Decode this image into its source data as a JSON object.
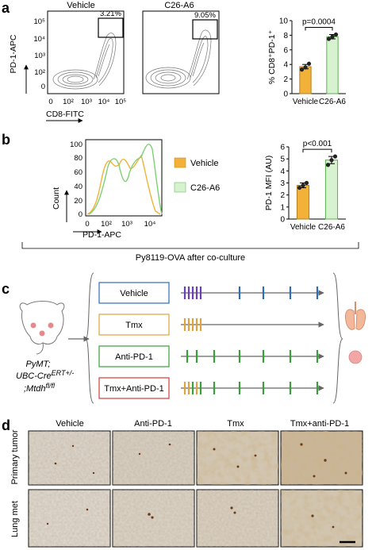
{
  "panel_a": {
    "label": "a",
    "flow_titles": [
      "Vehicle",
      "C26-A6"
    ],
    "gate_percents": [
      "3.21%",
      "9.05%"
    ],
    "y_axis_label": "PD-1-APC",
    "x_axis_label": "CD8-FITC",
    "y_ticks": [
      "10⁵",
      "10⁴",
      "10³",
      "10²",
      "0"
    ],
    "x_ticks": [
      "0",
      "10²",
      "10³",
      "10⁴",
      "10⁵"
    ],
    "bar_ylabel": "% CD8⁺PD-1⁺",
    "bar_pvalue": "p=0.0004",
    "bar_categories": [
      "Vehicle",
      "C26-A6"
    ],
    "bar_ticks": [
      "0",
      "2",
      "4",
      "6",
      "8",
      "10"
    ]
  },
  "panel_b": {
    "label": "b",
    "hist_ylabel": "Count",
    "hist_xlabel": "PD-1-APC",
    "hist_y_ticks": [
      "100",
      "80",
      "60",
      "40",
      "20",
      "0"
    ],
    "hist_x_ticks": [
      "0",
      "10²",
      "10³",
      "10⁴"
    ],
    "legend": [
      "Vehicle",
      "C26-A6"
    ],
    "bar_ylabel": "PD-1 MFI (AU)",
    "bar_pvalue": "p<0.001",
    "bar_categories": [
      "Vehicle",
      "C26-A6"
    ],
    "bar_ticks": [
      "0",
      "1",
      "2",
      "3",
      "4",
      "5",
      "6"
    ],
    "footer": "Py8119-OVA after co-culture"
  },
  "panel_c": {
    "label": "c",
    "mouse_genotype": [
      "PyMT;",
      "UBC-Cre",
      "ERT+/-",
      ";Mtdh",
      "fl/fl"
    ],
    "groups": [
      "Vehicle",
      "Tmx",
      "Anti-PD-1",
      "Tmx+Anti-PD-1"
    ]
  },
  "panel_d": {
    "label": "d",
    "col_labels": [
      "Vehicle",
      "Anti-PD-1",
      "Tmx",
      "Tmx+anti-PD-1"
    ],
    "row_labels": [
      "Primary tumor",
      "Lung met"
    ]
  },
  "colors": {
    "vehicle": "#f2b23a",
    "c26a6": "#9bd98f",
    "blue_box": "#2e6db5",
    "orange_box": "#e0a23c",
    "green_box": "#3a9e3a",
    "red_box": "#d13b3b",
    "purple_tick": "#6a3fb5"
  },
  "chart_data": [
    {
      "type": "bar",
      "title": "",
      "ylabel": "% CD8⁺PD-1⁺",
      "categories": [
        "Vehicle",
        "C26-A6"
      ],
      "values": [
        3.7,
        7.8
      ],
      "errors": [
        0.3,
        0.3
      ],
      "points": [
        [
          3.3,
          3.6,
          4.1
        ],
        [
          7.5,
          7.8,
          8.1
        ]
      ],
      "ylim": [
        0,
        10
      ],
      "annotation": "p=0.0004"
    },
    {
      "type": "bar",
      "title": "",
      "ylabel": "PD-1 MFI (AU)",
      "categories": [
        "Vehicle",
        "C26-A6"
      ],
      "values": [
        2.8,
        4.9
      ],
      "errors": [
        0.2,
        0.3
      ],
      "points": [
        [
          2.6,
          2.8,
          3.0
        ],
        [
          4.5,
          4.9,
          5.2
        ]
      ],
      "ylim": [
        0,
        6
      ],
      "annotation": "p<0.001"
    }
  ]
}
